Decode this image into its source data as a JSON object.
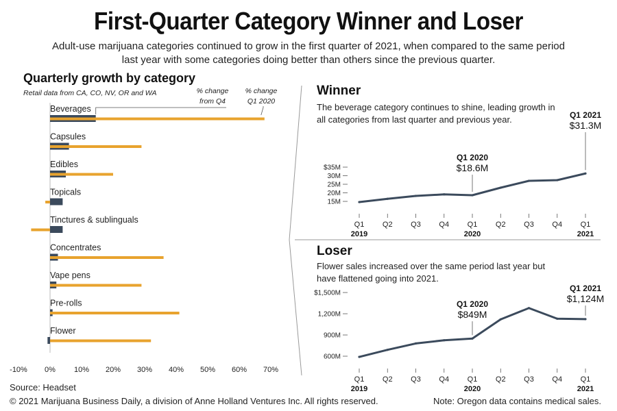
{
  "header": {
    "title": "First-Quarter Category Winner and Loser",
    "subtitle": "Adult-use marijuana categories continued to grow in the first quarter of 2021, when compared to the same period last year with some categories doing better than others since the previous quarter."
  },
  "colors": {
    "q4_bar": "#3b4a5c",
    "q1_bar": "#e8a32e",
    "line": "#3b4a5c",
    "divider": "#999999"
  },
  "chart_data": [
    {
      "type": "bar",
      "title": "Quarterly growth by category",
      "subtitle": "Retail data from CA, CO, NV, OR and WA",
      "categories": [
        "Beverages",
        "Capsules",
        "Edibles",
        "Topicals",
        "Tinctures & sublinguals",
        "Concentrates",
        "Vape pens",
        "Pre-rolls",
        "Flower"
      ],
      "series": [
        {
          "name": "% change from Q4",
          "values": [
            14.5,
            6,
            5,
            4,
            4,
            2.5,
            2,
            0.8,
            -0.8
          ]
        },
        {
          "name": "% change Q1 2020",
          "values": [
            68,
            29,
            20,
            -1.5,
            -6,
            36,
            29,
            41,
            32
          ]
        }
      ],
      "xlim": [
        -10,
        70
      ],
      "xticks": [
        "-10%",
        "0%",
        "10%",
        "20%",
        "30%",
        "40%",
        "50%",
        "60%",
        "70%"
      ],
      "legend_labels": {
        "q4": [
          "% change",
          "from Q4"
        ],
        "q1": [
          "% change",
          "Q1 2020"
        ]
      }
    },
    {
      "type": "line",
      "title": "Winner",
      "subtitle": "The beverage category continues to shine, leading growth in all categories from last quarter and previous year.",
      "x": [
        "Q1",
        "Q2",
        "Q3",
        "Q4",
        "Q1",
        "Q2",
        "Q3",
        "Q4",
        "Q1"
      ],
      "year_labels": [
        "2019",
        "",
        "",
        "",
        "2020",
        "",
        "",
        "",
        "2021"
      ],
      "values": [
        14.6,
        16.5,
        18.2,
        19.1,
        18.6,
        23.0,
        27.0,
        27.4,
        31.3
      ],
      "ylim": [
        15,
        35
      ],
      "yticks": [
        "15M",
        "20M",
        "25M",
        "30M",
        "$35M"
      ],
      "annotations": [
        {
          "index": 4,
          "label": "Q1 2020",
          "value": "$18.6M"
        },
        {
          "index": 8,
          "label": "Q1 2021",
          "value": "$31.3M"
        }
      ]
    },
    {
      "type": "line",
      "title": "Loser",
      "subtitle": "Flower sales increased over the same period last year but have flattened going into 2021.",
      "x": [
        "Q1",
        "Q2",
        "Q3",
        "Q4",
        "Q1",
        "Q2",
        "Q3",
        "Q4",
        "Q1"
      ],
      "year_labels": [
        "2019",
        "",
        "",
        "",
        "2020",
        "",
        "",
        "",
        "2021"
      ],
      "values": [
        590,
        690,
        780,
        825,
        849,
        1120,
        1280,
        1130,
        1124
      ],
      "ylim": [
        600,
        1500
      ],
      "yticks": [
        "600M",
        "900M",
        "1,200M",
        "$1,500M"
      ],
      "annotations": [
        {
          "index": 4,
          "label": "Q1 2020",
          "value": "$849M"
        },
        {
          "index": 8,
          "label": "Q1 2021",
          "value": "$1,124M"
        }
      ]
    }
  ],
  "footer": {
    "source": "Source: Headset",
    "copyright": "© 2021 Marijuana Business Daily, a division of Anne Holland Ventures Inc. All rights reserved.",
    "note": "Note: Oregon data contains medical sales."
  }
}
